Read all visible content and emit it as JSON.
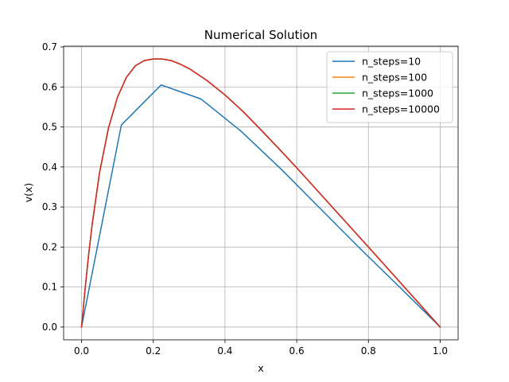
{
  "chart_data": {
    "type": "line",
    "title": "Numerical Solution",
    "xlabel": "x",
    "ylabel": "v(x)",
    "xlim": [
      -0.05,
      1.05
    ],
    "ylim": [
      -0.032,
      0.702
    ],
    "xticks": [
      0.0,
      0.2,
      0.4,
      0.6,
      0.8,
      1.0
    ],
    "xtick_labels": [
      "0.0",
      "0.2",
      "0.4",
      "0.6",
      "0.8",
      "1.0"
    ],
    "yticks": [
      0.0,
      0.1,
      0.2,
      0.3,
      0.4,
      0.5,
      0.6,
      0.7
    ],
    "ytick_labels": [
      "0.0",
      "0.1",
      "0.2",
      "0.3",
      "0.4",
      "0.5",
      "0.6",
      "0.7"
    ],
    "grid": true,
    "legend_position": "top-right",
    "series": [
      {
        "name": "n_steps=10",
        "color": "#1f77b4",
        "x": [
          0.0,
          0.111,
          0.222,
          0.333,
          0.444,
          0.556,
          0.667,
          0.778,
          0.889,
          1.0
        ],
        "y": [
          0.0,
          0.505,
          0.605,
          0.57,
          0.49,
          0.395,
          0.295,
          0.195,
          0.098,
          0.0
        ]
      },
      {
        "name": "n_steps=100",
        "color": "#ff7f0e",
        "x": [
          0.0,
          0.01,
          0.02,
          0.03,
          0.05,
          0.075,
          0.1,
          0.125,
          0.15,
          0.175,
          0.2,
          0.225,
          0.25,
          0.275,
          0.3,
          0.35,
          0.4,
          0.45,
          0.5,
          0.55,
          0.6,
          0.7,
          0.8,
          0.9,
          1.0
        ],
        "y": [
          0.0,
          0.096,
          0.183,
          0.259,
          0.385,
          0.497,
          0.574,
          0.624,
          0.653,
          0.666,
          0.67,
          0.67,
          0.666,
          0.657,
          0.646,
          0.616,
          0.58,
          0.539,
          0.493,
          0.446,
          0.398,
          0.299,
          0.2,
          0.1,
          0.0
        ]
      },
      {
        "name": "n_steps=1000",
        "color": "#2ca02c",
        "x": [
          0.0,
          0.01,
          0.02,
          0.03,
          0.05,
          0.075,
          0.1,
          0.125,
          0.15,
          0.175,
          0.2,
          0.225,
          0.25,
          0.275,
          0.3,
          0.35,
          0.4,
          0.45,
          0.5,
          0.55,
          0.6,
          0.7,
          0.8,
          0.9,
          1.0
        ],
        "y": [
          0.0,
          0.096,
          0.183,
          0.259,
          0.385,
          0.497,
          0.574,
          0.624,
          0.653,
          0.666,
          0.67,
          0.67,
          0.666,
          0.657,
          0.646,
          0.616,
          0.58,
          0.539,
          0.493,
          0.446,
          0.398,
          0.299,
          0.2,
          0.1,
          0.0
        ]
      },
      {
        "name": "n_steps=10000",
        "color": "#d62728",
        "x": [
          0.0,
          0.01,
          0.02,
          0.03,
          0.05,
          0.075,
          0.1,
          0.125,
          0.15,
          0.175,
          0.2,
          0.225,
          0.25,
          0.275,
          0.3,
          0.35,
          0.4,
          0.45,
          0.5,
          0.55,
          0.6,
          0.7,
          0.8,
          0.9,
          1.0
        ],
        "y": [
          0.0,
          0.096,
          0.183,
          0.259,
          0.385,
          0.497,
          0.574,
          0.624,
          0.653,
          0.666,
          0.67,
          0.67,
          0.666,
          0.657,
          0.646,
          0.616,
          0.58,
          0.539,
          0.493,
          0.446,
          0.398,
          0.299,
          0.2,
          0.1,
          0.0
        ]
      }
    ]
  }
}
